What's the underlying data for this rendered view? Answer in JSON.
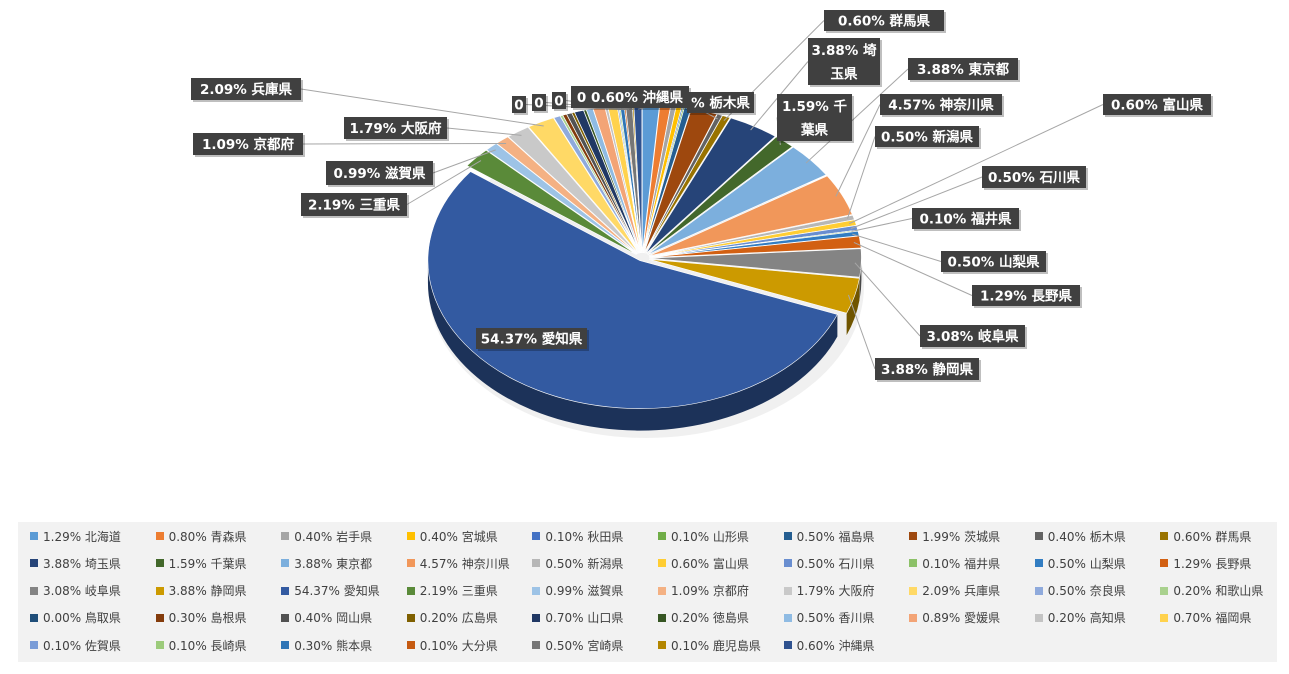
{
  "chart_data": {
    "type": "pie",
    "style": "3d-exploded",
    "legend_position": "bottom",
    "categories": [
      "1.29% 北海道",
      "0.80% 青森県",
      "0.40% 岩手県",
      "0.40% 宮城県",
      "0.10% 秋田県",
      "0.10% 山形県",
      "0.50% 福島県",
      "1.99% 茨城県",
      "0.40% 栃木県",
      "0.60% 群馬県",
      "3.88% 埼玉県",
      "1.59% 千葉県",
      "3.88% 東京都",
      "4.57% 神奈川県",
      "0.50% 新潟県",
      "0.60% 富山県",
      "0.50% 石川県",
      "0.10% 福井県",
      "0.50% 山梨県",
      "1.29% 長野県",
      "3.08% 岐阜県",
      "3.88% 静岡県",
      "54.37% 愛知県",
      "2.19% 三重県",
      "0.99% 滋賀県",
      "1.09% 京都府",
      "1.79% 大阪府",
      "2.09% 兵庫県",
      "0.50% 奈良県",
      "0.20% 和歌山県",
      "0.00% 鳥取県",
      "0.30% 島根県",
      "0.40% 岡山県",
      "0.20% 広島県",
      "0.70% 山口県",
      "0.20% 徳島県",
      "0.50% 香川県",
      "0.89% 愛媛県",
      "0.20% 高知県",
      "0.70% 福岡県",
      "0.10% 佐賀県",
      "0.10% 長崎県",
      "0.30% 熊本県",
      "0.10% 大分県",
      "0.50% 宮崎県",
      "0.10% 鹿児島県",
      "0.60% 沖縄県"
    ],
    "values": [
      1.29,
      0.8,
      0.4,
      0.4,
      0.1,
      0.1,
      0.5,
      1.99,
      0.4,
      0.6,
      3.88,
      1.59,
      3.88,
      4.57,
      0.5,
      0.6,
      0.5,
      0.1,
      0.5,
      1.29,
      3.08,
      3.88,
      54.37,
      2.19,
      0.99,
      1.09,
      1.79,
      2.09,
      0.5,
      0.2,
      0.0,
      0.3,
      0.4,
      0.2,
      0.7,
      0.2,
      0.5,
      0.89,
      0.2,
      0.7,
      0.1,
      0.1,
      0.3,
      0.1,
      0.5,
      0.1,
      0.6
    ],
    "colors": [
      "#5b9bd5",
      "#ed7d31",
      "#a5a5a5",
      "#ffc000",
      "#4472c4",
      "#70ad47",
      "#255e91",
      "#9e480e",
      "#636363",
      "#997300",
      "#264478",
      "#43682b",
      "#7cafdd",
      "#f1975a",
      "#b7b7b7",
      "#ffcd33",
      "#698ed0",
      "#8cc168",
      "#327dc2",
      "#d26012",
      "#848484",
      "#cc9a00",
      "#335aa1",
      "#5a8a39",
      "#9dc3e6",
      "#f4b183",
      "#c9c9c9",
      "#ffd966",
      "#8faadc",
      "#a9d18e",
      "#1f4e79",
      "#843c0c",
      "#525252",
      "#7f6000",
      "#203864",
      "#375623",
      "#8fbbe3",
      "#f3a476",
      "#c3c3c3",
      "#ffd24d",
      "#7a9cd7",
      "#9ccb7b",
      "#2e75b6",
      "#c55a11",
      "#767676",
      "#b38600",
      "#2f528f"
    ],
    "data_labels": [
      {
        "index": 9,
        "text": "0.60% 群馬県"
      },
      {
        "index": 10,
        "text": "3.88% 埼\n玉県"
      },
      {
        "index": 12,
        "text": "3.88% 東京都"
      },
      {
        "index": 11,
        "text": "1.59% 千\n葉県"
      },
      {
        "index": 13,
        "text": "4.57% 神奈川県"
      },
      {
        "index": 15,
        "text": "0.60% 富山県"
      },
      {
        "index": 14,
        "text": "0.50% 新潟県"
      },
      {
        "index": 16,
        "text": "0.50% 石川県"
      },
      {
        "index": 17,
        "text": "0.10% 福井県"
      },
      {
        "index": 18,
        "text": "0.50% 山梨県"
      },
      {
        "index": 19,
        "text": "1.29% 長野県"
      },
      {
        "index": 20,
        "text": "3.08% 岐阜県"
      },
      {
        "index": 21,
        "text": "3.88% 静岡県"
      },
      {
        "index": 22,
        "text": "54.37% 愛知県"
      },
      {
        "index": 23,
        "text": "2.19% 三重県"
      },
      {
        "index": 24,
        "text": "0.99% 滋賀県"
      },
      {
        "index": 25,
        "text": "1.09% 京都府"
      },
      {
        "index": 26,
        "text": "1.79% 大阪府"
      },
      {
        "index": 27,
        "text": "2.09% 兵庫県"
      },
      {
        "index": 46,
        "text": "0 0.60% 沖縄県"
      },
      {
        "index": 8,
        "text": "% 栃木県"
      },
      {
        "index": 43,
        "text": "0"
      },
      {
        "index": 44,
        "text": "0"
      },
      {
        "index": 45,
        "text": "0"
      }
    ]
  }
}
